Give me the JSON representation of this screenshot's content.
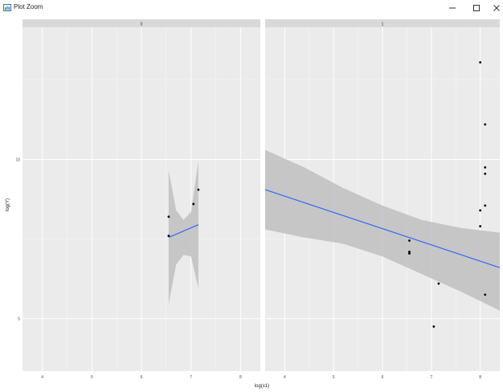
{
  "window": {
    "title": "Plot Zoom",
    "icon": "plot-zoom-app-icon",
    "controls": [
      "minimize-icon",
      "maximize-icon",
      "close-icon"
    ]
  },
  "colors": {
    "panel_bg": "#EBEBEB",
    "strip_bg": "#D9D9D9",
    "grid_major": "#FFFFFF",
    "grid_minor": "#F5F5F5",
    "points": "#000000",
    "fit_line": "#3366FF",
    "ribbon": "#BFBFBF"
  },
  "chart_data": {
    "type": "scatter",
    "xlabel": "log(x1)",
    "ylabel": "log(Y)",
    "xlim": [
      3.6,
      8.4
    ],
    "ylim": [
      3.35,
      14.15
    ],
    "x_ticks": [
      4,
      5,
      6,
      7,
      8
    ],
    "y_ticks": [
      5,
      10
    ],
    "panels": [
      {
        "strip": "0",
        "points": [
          {
            "x": 6.55,
            "y": 8.2
          },
          {
            "x": 6.55,
            "y": 7.6
          },
          {
            "x": 7.05,
            "y": 8.6
          },
          {
            "x": 7.15,
            "y": 9.05
          }
        ],
        "fit": {
          "x": [
            6.55,
            7.15
          ],
          "y": [
            7.55,
            7.95
          ]
        },
        "band": {
          "x": [
            6.55,
            6.7,
            6.85,
            7.0,
            7.15
          ],
          "lower": [
            5.45,
            6.7,
            7.0,
            6.95,
            5.95
          ],
          "upper": [
            9.65,
            8.4,
            8.1,
            8.35,
            9.95
          ]
        }
      },
      {
        "strip": "1",
        "points": [
          {
            "x": 8.0,
            "y": 13.05
          },
          {
            "x": 8.1,
            "y": 11.1
          },
          {
            "x": 8.1,
            "y": 9.75
          },
          {
            "x": 8.1,
            "y": 9.55
          },
          {
            "x": 8.1,
            "y": 8.55
          },
          {
            "x": 8.0,
            "y": 8.4
          },
          {
            "x": 8.0,
            "y": 7.9
          },
          {
            "x": 8.1,
            "y": 5.75
          },
          {
            "x": 7.15,
            "y": 6.1
          },
          {
            "x": 7.05,
            "y": 4.75
          },
          {
            "x": 6.55,
            "y": 7.05
          },
          {
            "x": 6.55,
            "y": 7.45
          },
          {
            "x": 6.55,
            "y": 7.1
          },
          {
            "x": 6.55,
            "y": 7.05
          }
        ],
        "fit": {
          "x": [
            3.6,
            8.4
          ],
          "y": [
            9.05,
            6.6
          ]
        },
        "band": {
          "x": [
            3.6,
            4.4,
            5.2,
            6.0,
            6.8,
            7.6,
            8.4
          ],
          "lower": [
            7.8,
            7.55,
            7.35,
            6.95,
            6.4,
            5.85,
            5.25
          ],
          "upper": [
            10.3,
            9.75,
            9.1,
            8.55,
            8.1,
            7.85,
            7.7
          ]
        }
      }
    ]
  }
}
